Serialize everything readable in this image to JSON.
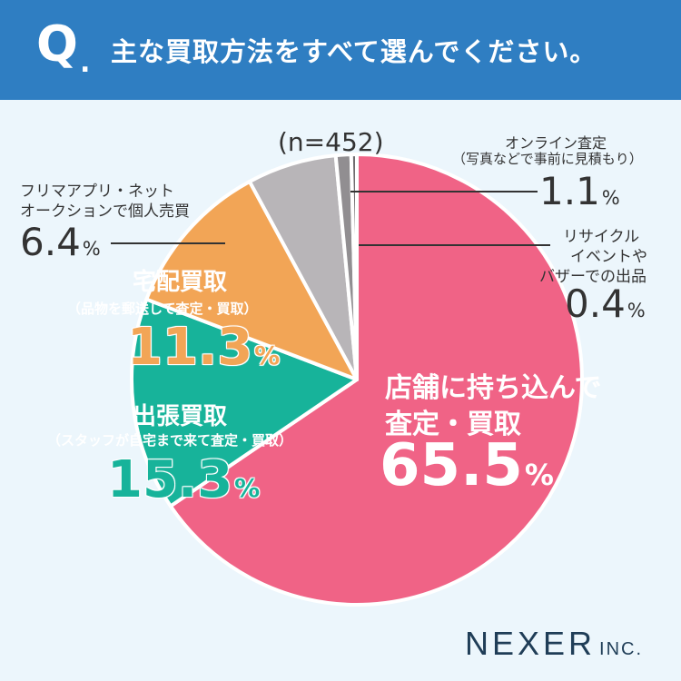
{
  "header": {
    "q": "Q",
    "dot": ".",
    "question": "主な買取方法をすべて選んでください。"
  },
  "n_label": "(n=452)",
  "unit": "%",
  "labels": {
    "store": {
      "title1": "店舗に持ち込んで",
      "title2": "査定・買取",
      "value": "65.5"
    },
    "visit": {
      "title": "出張買取",
      "sub": "（スタッフが自宅まで来て査定・買取）",
      "value": "15.3"
    },
    "delivery": {
      "title": "宅配買取",
      "sub": "（品物を郵送して査定・買取）",
      "value": "11.3"
    },
    "flea": {
      "title1": "フリマアプリ・ネット",
      "title2": "オークションで個人売買",
      "value": "6.4"
    },
    "online": {
      "title1": "オンライン査定",
      "title2": "（写真などで事前に見積もり）",
      "value": "1.1"
    },
    "recycle": {
      "title1": "リサイクル",
      "title2": "イベントや",
      "title3": "バザーでの出品",
      "value": "0.4"
    }
  },
  "logo": {
    "name": "NEXER",
    "suffix": "INC."
  },
  "chart_data": {
    "type": "pie",
    "title": "主な買取方法をすべて選んでください。",
    "n": 452,
    "unit": "%",
    "slices": [
      {
        "label": "店舗に持ち込んで査定・買取",
        "value": 65.5,
        "color": "#f06386"
      },
      {
        "label": "出張買取",
        "value": 15.3,
        "color": "#17b39a"
      },
      {
        "label": "宅配買取",
        "value": 11.3,
        "color": "#f2a556"
      },
      {
        "label": "フリマアプリ・ネットオークションで個人売買",
        "value": 6.4,
        "color": "#b8b5b8"
      },
      {
        "label": "オンライン査定（写真などで事前に見積もり）",
        "value": 1.1,
        "color": "#918e91"
      },
      {
        "label": "リサイクルイベントやバザーでの出品",
        "value": 0.4,
        "color": "#6e6b6e"
      }
    ]
  }
}
